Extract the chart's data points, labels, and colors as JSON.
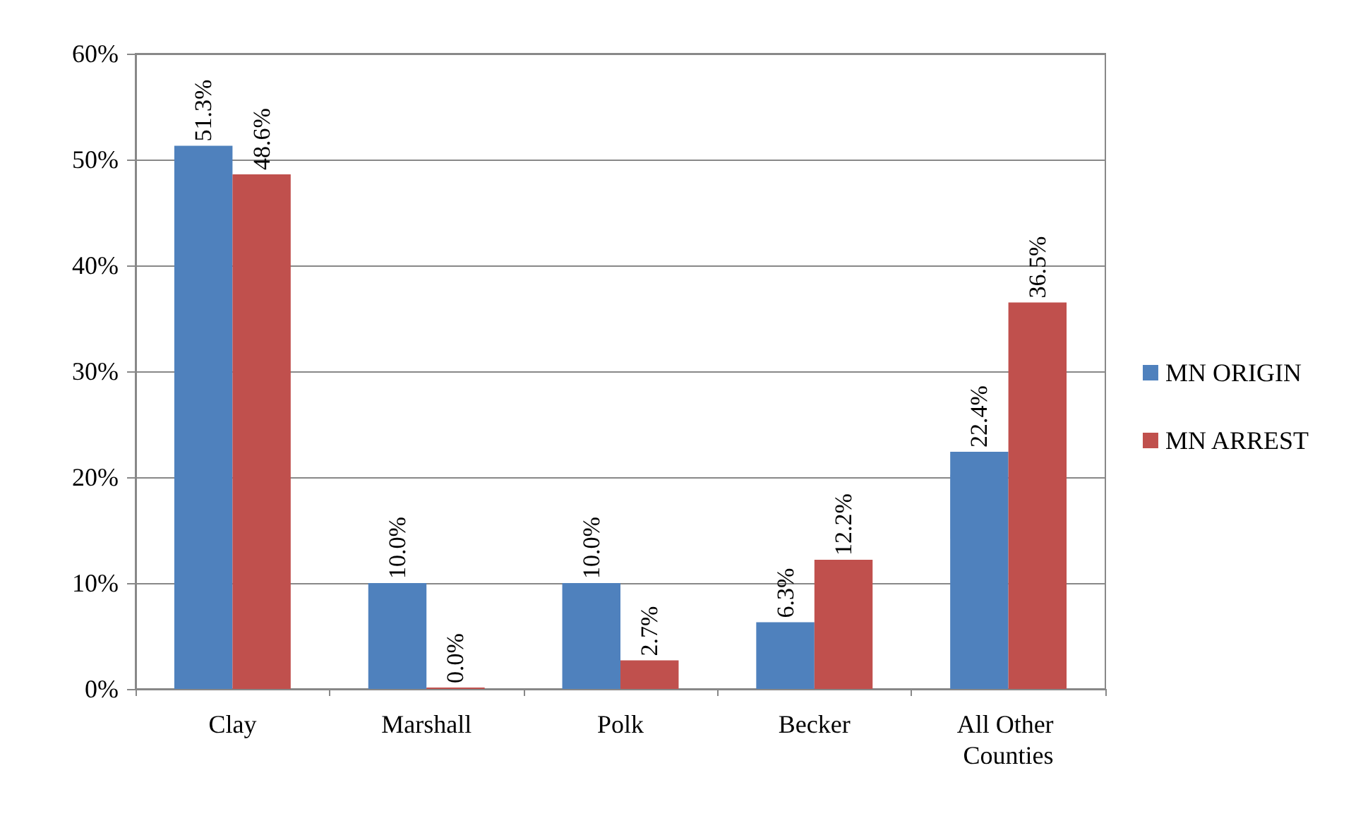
{
  "chart_data": {
    "type": "bar",
    "categories": [
      "Clay",
      "Marshall",
      "Polk",
      "Becker",
      "All Other Counties"
    ],
    "series": [
      {
        "name": "MN ORIGIN",
        "color": "#4f81bd",
        "values": [
          51.3,
          10.0,
          10.0,
          6.3,
          22.4
        ],
        "value_labels": [
          "51.3%",
          "10.0%",
          "10.0%",
          "6.3%",
          "22.4%"
        ]
      },
      {
        "name": "MN ARREST",
        "color": "#c0504d",
        "values": [
          48.6,
          0.0,
          2.7,
          12.2,
          36.5
        ],
        "value_labels": [
          "48.6%",
          "0.0%",
          "2.7%",
          "12.2%",
          "36.5%"
        ]
      }
    ],
    "ylim": [
      0,
      60
    ],
    "yticks": [
      {
        "value": 0,
        "label": "0%"
      },
      {
        "value": 10,
        "label": "10%"
      },
      {
        "value": 20,
        "label": "20%"
      },
      {
        "value": 30,
        "label": "30%"
      },
      {
        "value": 40,
        "label": "40%"
      },
      {
        "value": 50,
        "label": "50%"
      },
      {
        "value": 60,
        "label": "60%"
      }
    ],
    "grid": "y",
    "legend": "right"
  }
}
